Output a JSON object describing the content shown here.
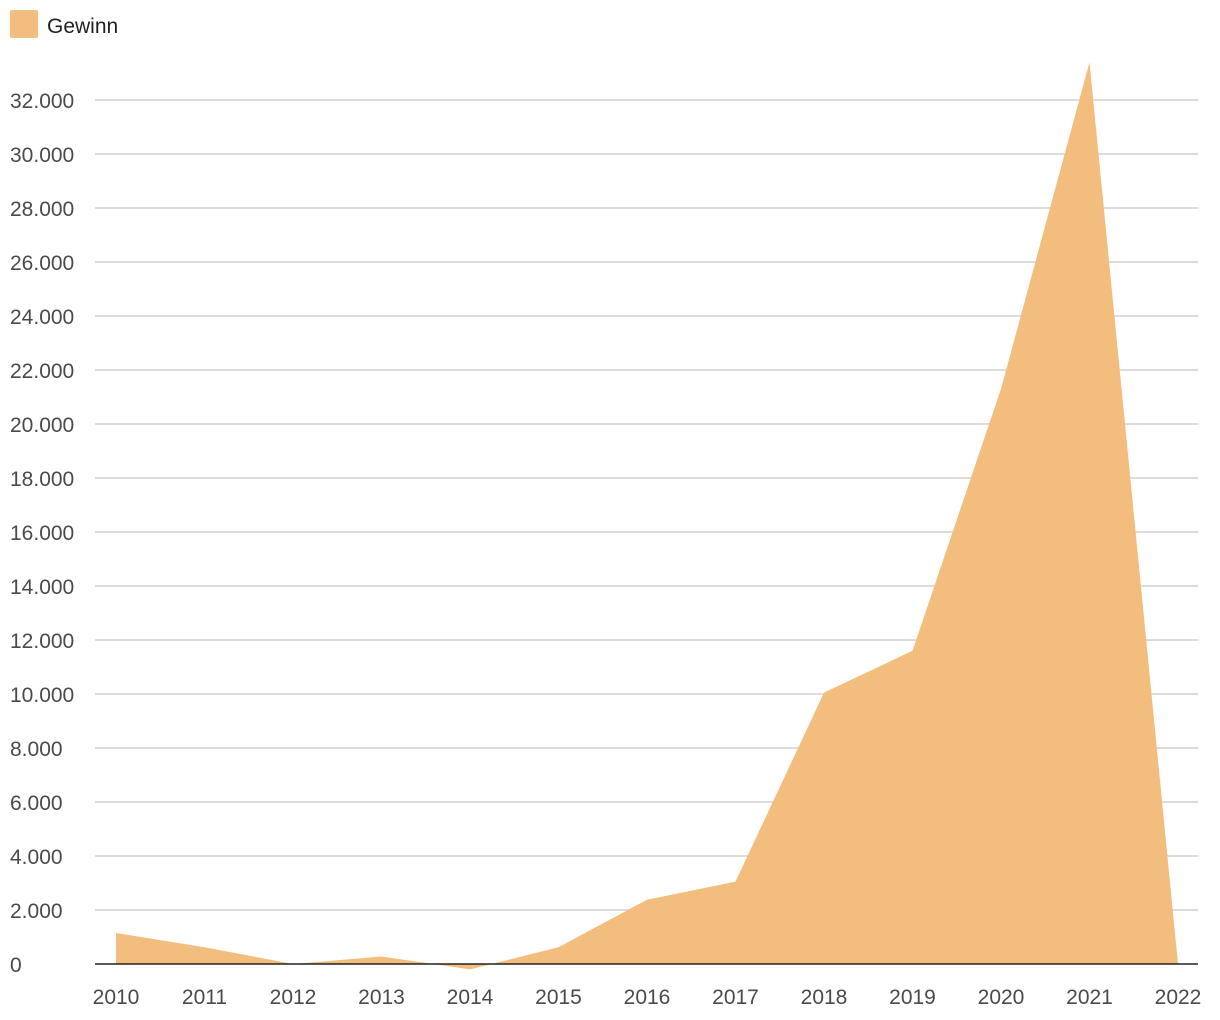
{
  "chart_data": {
    "type": "area",
    "title": "",
    "xlabel": "",
    "ylabel": "",
    "categories": [
      "2010",
      "2011",
      "2012",
      "2013",
      "2014",
      "2015",
      "2016",
      "2017",
      "2018",
      "2019",
      "2020",
      "2021",
      "2022"
    ],
    "series": [
      {
        "name": "Gewinn",
        "color": "#f3bd7e",
        "values": [
          1150,
          620,
          0,
          280,
          -200,
          620,
          2380,
          3050,
          10050,
          11600,
          21300,
          33400,
          0
        ]
      }
    ],
    "ylim": [
      0,
      32000
    ],
    "y_ticks": [
      0,
      2000,
      4000,
      6000,
      8000,
      10000,
      12000,
      14000,
      16000,
      18000,
      20000,
      22000,
      24000,
      26000,
      28000,
      30000,
      32000
    ],
    "y_tick_labels": [
      "0",
      "2.000",
      "4.000",
      "6.000",
      "8.000",
      "10.000",
      "12.000",
      "14.000",
      "16.000",
      "18.000",
      "20.000",
      "22.000",
      "24.000",
      "26.000",
      "28.000",
      "30.000",
      "32.000"
    ],
    "grid": true,
    "legend": "top-left"
  }
}
